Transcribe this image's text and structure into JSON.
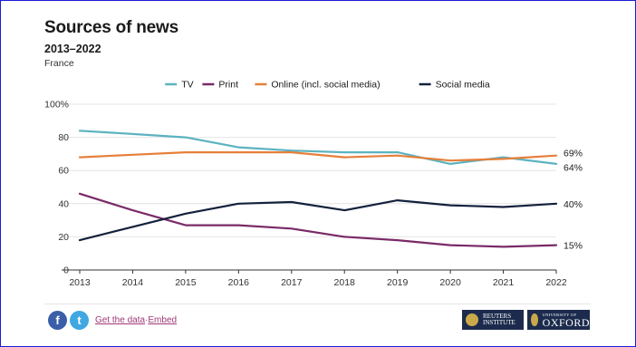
{
  "header": {
    "title": "Sources of news",
    "subtitle": "2013–2022",
    "region": "France"
  },
  "footer": {
    "facebook_glyph": "f",
    "twitter_glyph": "t",
    "get_data": "Get the data",
    "separator": "·",
    "embed": "Embed",
    "reuters_line1": "REUTERS",
    "reuters_line2": "INSTITUTE",
    "oxford_small": "UNIVERSITY OF",
    "oxford_big": "OXFORD"
  },
  "colors": {
    "tv": "#5cb3bf",
    "print": "#7a2a67",
    "online": "#e67f3a",
    "social": "#14213d"
  },
  "chart_data": {
    "type": "line",
    "x": [
      2013,
      2014,
      2015,
      2016,
      2017,
      2018,
      2019,
      2020,
      2021,
      2022
    ],
    "ylim": [
      0,
      100
    ],
    "y_ticks": [
      "0",
      "20",
      "40",
      "60",
      "80",
      "100%"
    ],
    "series": [
      {
        "name": "TV",
        "values": [
          84,
          82,
          80,
          74,
          72,
          71,
          71,
          64,
          68,
          64
        ],
        "end_label": "64%"
      },
      {
        "name": "Print",
        "values": [
          46,
          36,
          27,
          27,
          25,
          20,
          18,
          15,
          14,
          15
        ],
        "end_label": "15%"
      },
      {
        "name": "Online (incl. social media)",
        "values": [
          68,
          69.5,
          71,
          71,
          71,
          68,
          69,
          66,
          67,
          69
        ],
        "end_label": "69%"
      },
      {
        "name": "Social media",
        "values": [
          18,
          26,
          34,
          40,
          41,
          36,
          42,
          39,
          38,
          40
        ],
        "end_label": "40%"
      }
    ],
    "legend_position": "top-center",
    "grid": true
  }
}
